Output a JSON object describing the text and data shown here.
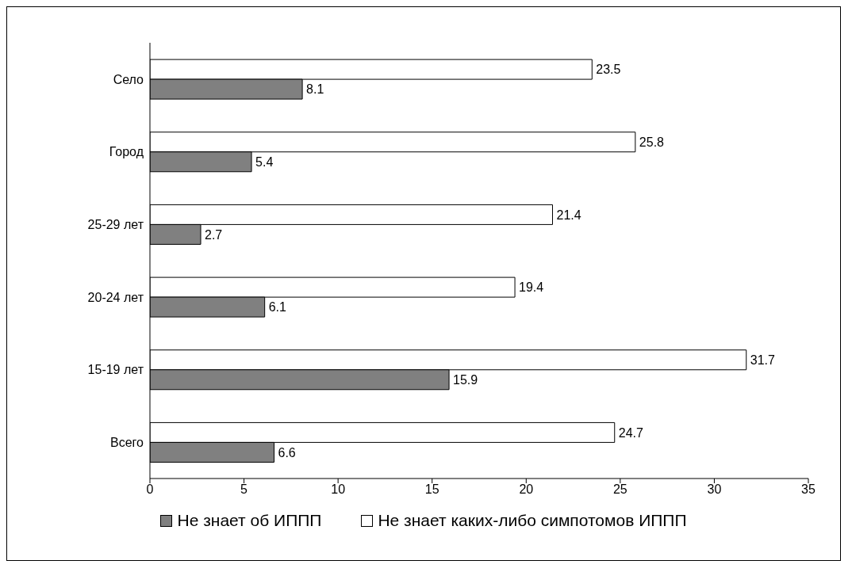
{
  "chart_data": {
    "type": "bar",
    "orientation": "horizontal",
    "categories": [
      "Село",
      "Город",
      "25-29 лет",
      "20-24 лет",
      "15-19 лет",
      "Всего"
    ],
    "series": [
      {
        "name": "Не знает об ИППП",
        "color": "#808080",
        "values": [
          8.1,
          5.4,
          2.7,
          6.1,
          15.9,
          6.6
        ]
      },
      {
        "name": "Не знает каких-либо симпотомов ИППП",
        "color": "#ffffff",
        "values": [
          23.5,
          25.8,
          21.4,
          19.4,
          31.7,
          24.7
        ]
      }
    ],
    "xlim": [
      0,
      35
    ],
    "xticks": [
      0,
      5,
      10,
      15,
      20,
      25,
      30,
      35
    ],
    "grid": false,
    "legend": "bottom",
    "data_labels": true
  }
}
